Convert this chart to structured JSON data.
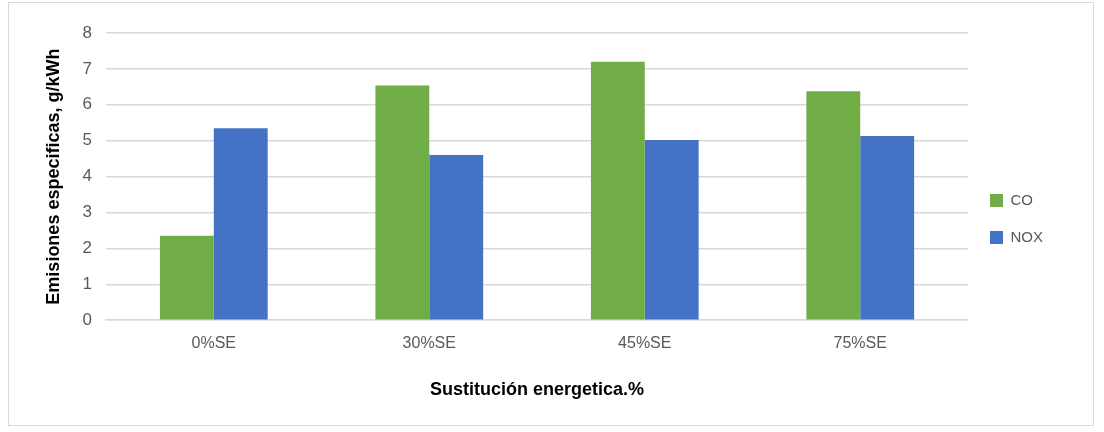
{
  "chart_data": {
    "type": "bar",
    "xlabel": "Sustitución energetica.%",
    "ylabel": "Emisiones especificas, g/kWh",
    "categories": [
      "0%SE",
      "30%SE",
      "45%SE",
      "75%SE"
    ],
    "series": [
      {
        "name": "CO",
        "color": "#70ad47",
        "values": [
          2.35,
          6.54,
          7.2,
          6.38
        ]
      },
      {
        "name": "NOX",
        "color": "#4472c4",
        "values": [
          5.35,
          4.6,
          5.02,
          5.13
        ]
      }
    ],
    "ylim": [
      0,
      8
    ],
    "yticks": [
      0,
      1,
      2,
      3,
      4,
      5,
      6,
      7,
      8
    ],
    "grid": "y",
    "legend": "right"
  }
}
